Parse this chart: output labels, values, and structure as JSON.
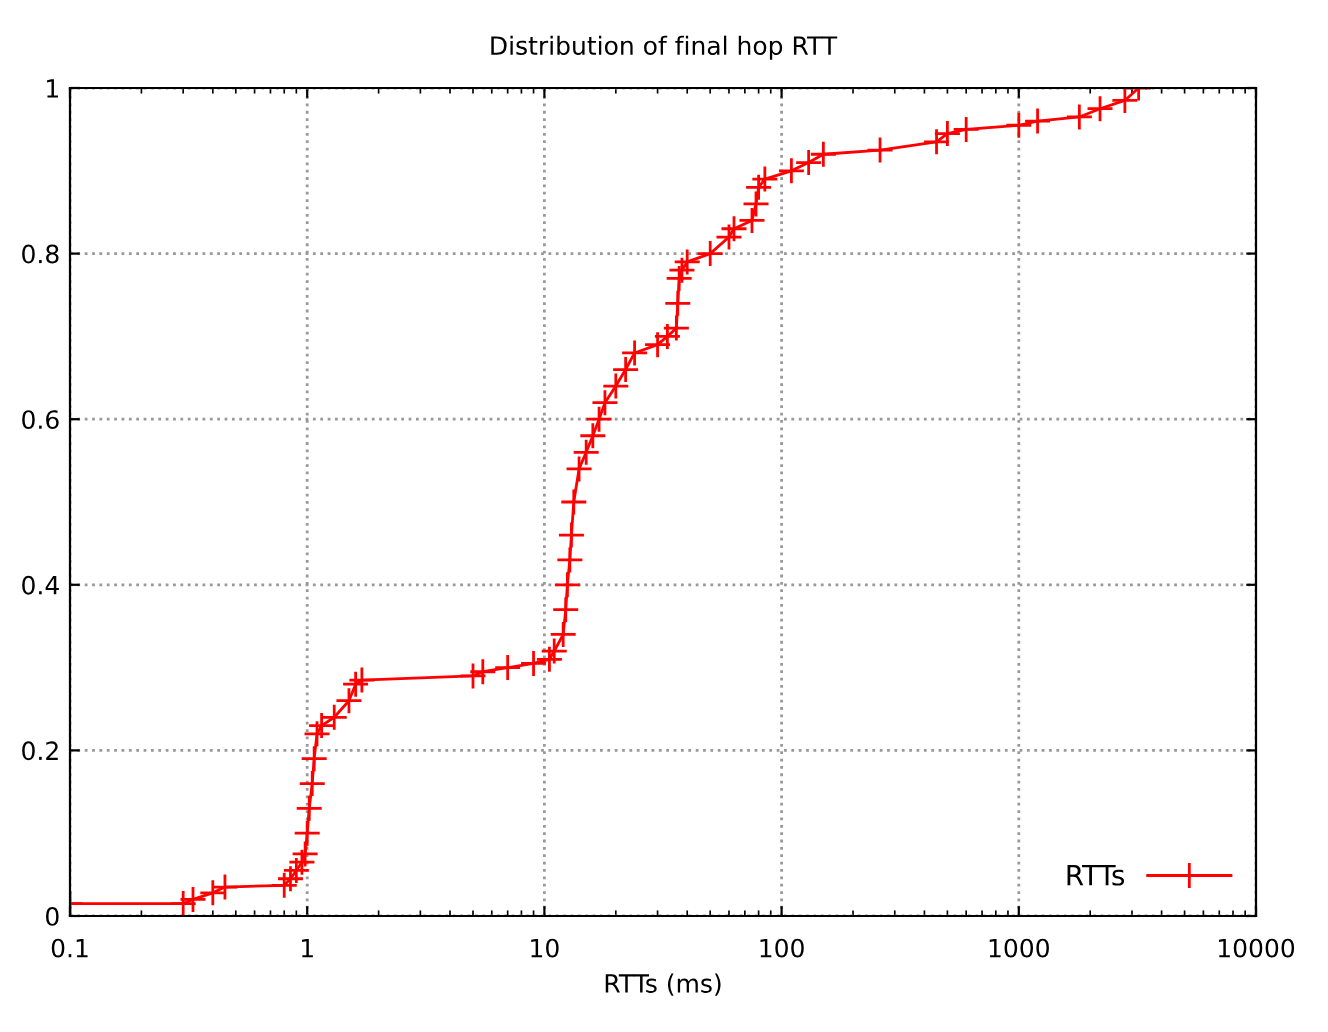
{
  "chart_data": {
    "type": "line",
    "title": "Distribution of final hop RTT",
    "xlabel": "RTTs (ms)",
    "log": "x",
    "xlim": [
      0.1,
      10000
    ],
    "xticks": [
      0.1,
      1,
      10,
      100,
      1000,
      10000
    ],
    "ylim": [
      0,
      1
    ],
    "yticks": [
      0,
      0.2,
      0.4,
      0.6,
      0.8,
      1
    ],
    "grid": true,
    "legend": "bottom right",
    "marker": "cross",
    "line_style": "solid",
    "series": [
      {
        "name": "RTTs",
        "color": "#ff0000",
        "x": [
          0.1,
          0.3,
          0.33,
          0.4,
          0.45,
          0.8,
          0.85,
          0.9,
          0.95,
          0.98,
          1.0,
          1.02,
          1.05,
          1.07,
          1.1,
          1.15,
          1.3,
          1.5,
          1.6,
          1.7,
          5,
          5.5,
          7,
          9,
          10.5,
          11,
          12,
          12.3,
          12.5,
          12.8,
          13,
          13.3,
          14,
          15,
          16,
          17,
          18,
          20,
          22,
          24,
          30,
          33,
          36,
          36.5,
          37,
          38,
          40,
          50,
          60,
          63,
          75,
          78,
          80,
          85,
          110,
          130,
          150,
          260,
          450,
          500,
          600,
          1000,
          1200,
          1800,
          2200,
          2800,
          3200
        ],
        "values": [
          0.015,
          0.015,
          0.02,
          0.028,
          0.035,
          0.037,
          0.045,
          0.055,
          0.065,
          0.075,
          0.1,
          0.13,
          0.16,
          0.19,
          0.22,
          0.23,
          0.24,
          0.26,
          0.28,
          0.285,
          0.29,
          0.295,
          0.3,
          0.305,
          0.31,
          0.32,
          0.34,
          0.37,
          0.4,
          0.43,
          0.46,
          0.5,
          0.54,
          0.56,
          0.58,
          0.6,
          0.62,
          0.64,
          0.66,
          0.68,
          0.69,
          0.7,
          0.71,
          0.74,
          0.77,
          0.78,
          0.79,
          0.8,
          0.82,
          0.83,
          0.84,
          0.86,
          0.88,
          0.89,
          0.9,
          0.91,
          0.92,
          0.925,
          0.935,
          0.945,
          0.95,
          0.955,
          0.96,
          0.965,
          0.975,
          0.985,
          1.0
        ]
      }
    ]
  }
}
